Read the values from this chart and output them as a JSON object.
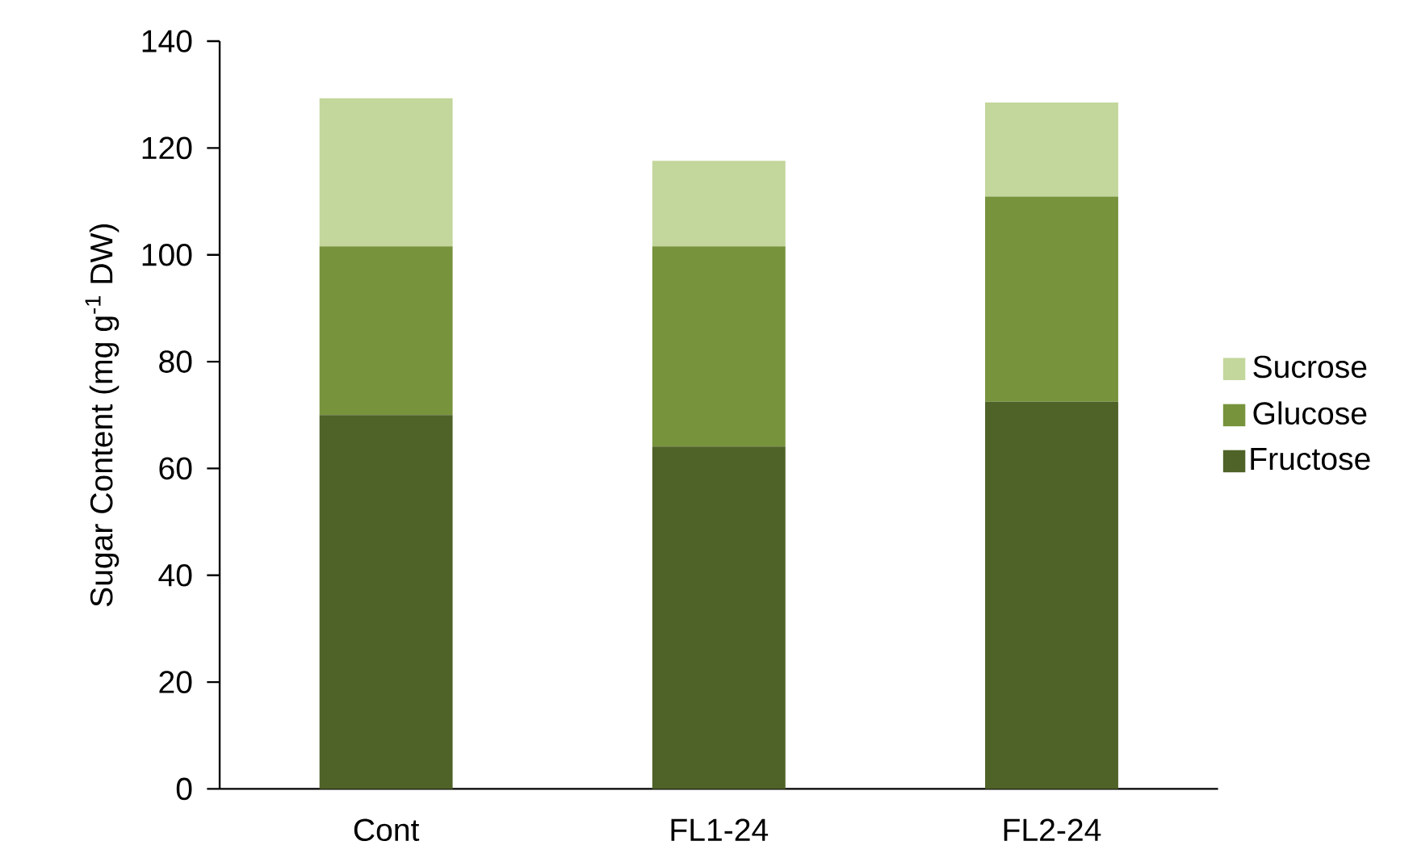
{
  "chart_data": {
    "type": "bar",
    "stacked": true,
    "ylabel": "Sugar Content (mg g$^{-1}$ DW)",
    "categories": [
      "Cont",
      "FL1-24",
      "FL2-24"
    ],
    "series": [
      {
        "name": "Fructose",
        "color": "#4f6228",
        "values": [
          70.0,
          64.1,
          72.5
        ]
      },
      {
        "name": "Glucose",
        "color": "#77933c",
        "values": [
          31.6,
          37.5,
          38.4
        ]
      },
      {
        "name": "Sucrose",
        "color": "#c3d69b",
        "values": [
          27.7,
          16.0,
          17.6
        ]
      }
    ],
    "ylim": [
      0,
      140
    ],
    "yticks": [
      0,
      20,
      40,
      60,
      80,
      100,
      120,
      140
    ],
    "legend": "right",
    "grid": false
  }
}
